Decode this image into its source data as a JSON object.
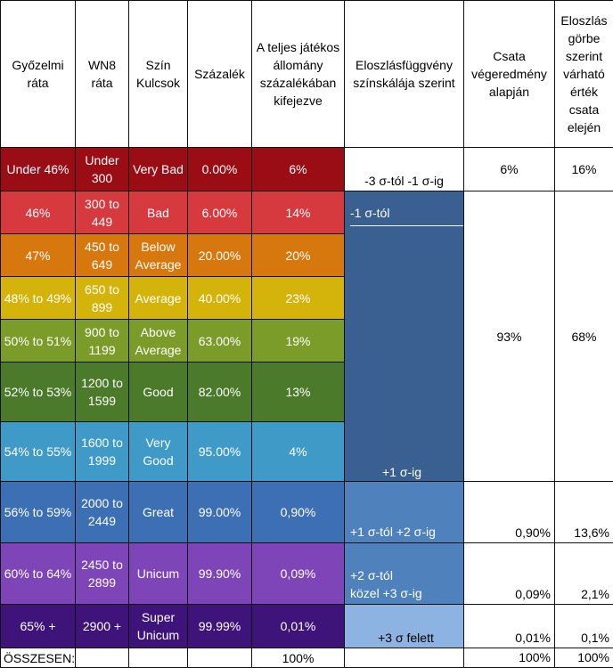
{
  "headers": {
    "winrate": "Győzelmi ráta",
    "wn8": "WN8 ráta",
    "color_key": "Szín Kulcsok",
    "percent": "Százalék",
    "share": "A teljes játékos állomány százalékában kifejezve",
    "dist_scale": "Eloszlásfüggvény színskálája szerint",
    "battle_result": "Csata végeredmény alapján",
    "expected": "Eloszlás görbe szerint várható érték csata elején"
  },
  "rows": [
    {
      "winrate": "Under 46%",
      "wn8": "Under 300",
      "color_key": "Very Bad",
      "percent": "0.00%",
      "share": "6%",
      "bg": "#9b0d14",
      "dist_bg": "#9b0d14"
    },
    {
      "winrate": "46%",
      "wn8": "300 to 449",
      "color_key": "Bad",
      "percent": "6.00%",
      "share": "14%",
      "bg": "#d63a3f"
    },
    {
      "winrate": "47%",
      "wn8": "450 to 649",
      "color_key": "Below Average",
      "percent": "20.00%",
      "share": "20%",
      "bg": "#d6780d"
    },
    {
      "winrate": "48% to 49%",
      "wn8": "650 to 899",
      "color_key": "Average",
      "percent": "40.00%",
      "share": "23%",
      "bg": "#d4b40a"
    },
    {
      "winrate": "50% to 51%",
      "wn8": "900 to 1199",
      "color_key": "Above Average",
      "percent": "63.00%",
      "share": "19%",
      "bg": "#7c9c2a"
    },
    {
      "winrate": "52% to 53%",
      "wn8": "1200 to 1599",
      "color_key": "Good",
      "percent": "82.00%",
      "share": "13%",
      "bg": "#4a7a2a"
    },
    {
      "winrate": "54% to 55%",
      "wn8": "1600 to 1999",
      "color_key": "Very Good",
      "percent": "95.00%",
      "share": "4%",
      "bg": "#3f9ac7"
    },
    {
      "winrate": "56% to 59%",
      "wn8": "2000 to 2449",
      "color_key": "Great",
      "percent": "99.00%",
      "share": "0,90%",
      "bg": "#3d6fb5"
    },
    {
      "winrate": "60% to 64%",
      "wn8": "2450 to 2899",
      "color_key": "Unicum",
      "percent": "99.90%",
      "share": "0,09%",
      "bg": "#7e45b8"
    },
    {
      "winrate": "65% +",
      "wn8": "2900 +",
      "color_key": "Super Unicum",
      "percent": "99.99%",
      "share": "0,01%",
      "bg": "#3e137a"
    }
  ],
  "dist": {
    "r1": "-3 σ-tól -1 σ-ig",
    "r2_top": "-1 σ-tól",
    "r2_bottom": "+1 σ-ig",
    "r3": "+1 σ-tól  +2 σ-ig",
    "r4_line1": "+2 σ-tól",
    "r4_line2": "közel +3 σ-ig",
    "r5": "+3 σ felett"
  },
  "dist_colors": {
    "r1": "#ffffff",
    "r2": "#3a6091",
    "r3": "#4f81bd",
    "r4": "#4f81bd",
    "r5": "#8db3e2"
  },
  "battle_result": {
    "r1": "6%",
    "r2": "93%",
    "r3": "0,90%",
    "r4": "0,09%",
    "r5": "0,01%"
  },
  "expected": {
    "r1": "16%",
    "r2": "68%",
    "r3": "13,6%",
    "r4": "2,1%",
    "r5": "0,1%"
  },
  "total": {
    "label": "ÖSSZESEN:",
    "share": "100%",
    "battle_result": "100%",
    "expected": "100%"
  }
}
